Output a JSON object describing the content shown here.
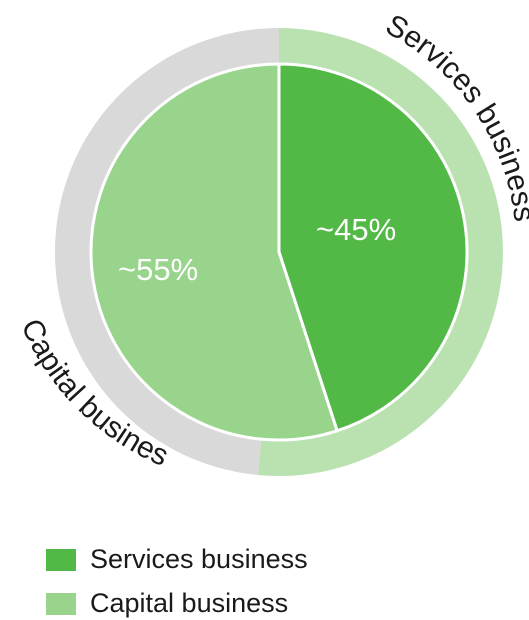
{
  "chart_data": {
    "type": "pie",
    "title": "",
    "categories": [
      "Services business",
      "Capital business"
    ],
    "values": [
      45,
      55
    ],
    "data_labels": [
      "~45%",
      "~55%"
    ],
    "ring_labels": [
      "Services business",
      "Capital business"
    ],
    "legend": {
      "placement": "bottom-left",
      "entries": [
        "Services business",
        "Capital business"
      ]
    },
    "grid": false
  },
  "colors": {
    "services_slice": "#52b947",
    "capital_slice": "#98d48c",
    "services_ring": "#b9e2b0",
    "capital_ring": "#d9d9d9",
    "slice_divider": "#ffffff",
    "label_text": "#ffffff",
    "ring_text": "#1a1a1a"
  }
}
